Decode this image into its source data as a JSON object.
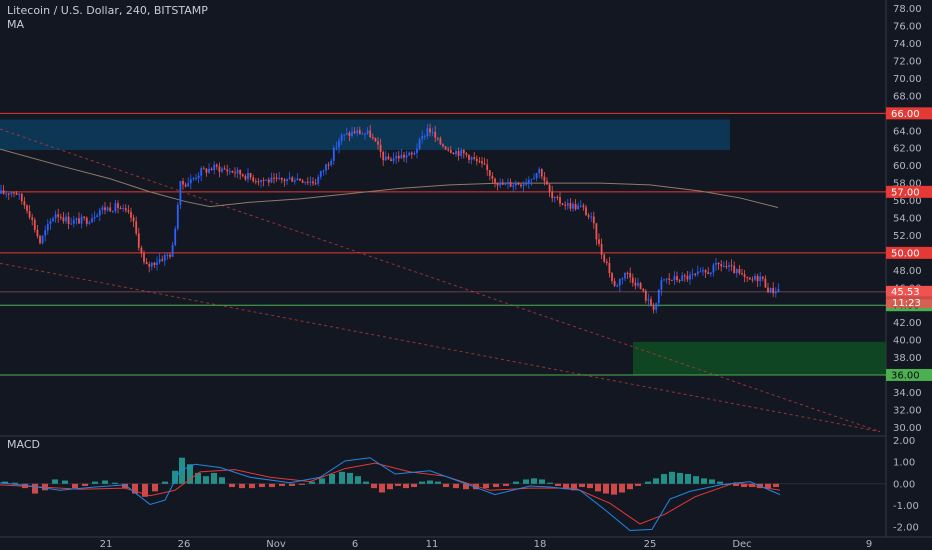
{
  "header": {
    "title": "Litecoin / U.S. Dollar, 240, BITSTAMP",
    "indicator": "MA",
    "macd_label": "MACD"
  },
  "colors": {
    "background": "#131722",
    "up_candle": "#2962ff",
    "down_candle": "#ef5350",
    "resistance": "#e53935",
    "support": "#4caf50",
    "supply_zone": "#0c3a5a",
    "demand_zone": "#0f4a23",
    "ma_line": "#8d7c6a",
    "macd_line": "#1e88e5",
    "signal_line": "#e53935",
    "hist_pos": "#26a69a",
    "hist_neg": "#ef5350"
  },
  "chart_data": [
    {
      "type": "line",
      "title": "Litecoin / U.S. Dollar, 240, BITSTAMP",
      "y_axis": {
        "range": [
          29,
          79
        ],
        "ticks": [
          "30.00",
          "32.00",
          "34.00",
          "36.00",
          "38.00",
          "40.00",
          "42.00",
          "44.00",
          "46.00",
          "48.00",
          "50.00",
          "52.00",
          "54.00",
          "56.00",
          "58.00",
          "60.00",
          "62.00",
          "64.00",
          "66.00",
          "68.00",
          "70.00",
          "72.00",
          "74.00",
          "76.00",
          "78.00"
        ]
      },
      "x_axis": {
        "ticks": [
          "21",
          "26",
          "Nov",
          "6",
          "11",
          "18",
          "25",
          "Dec",
          "9"
        ]
      },
      "price_path": [
        {
          "x": 0,
          "y": 56.8
        },
        {
          "x": 15,
          "y": 57.1
        },
        {
          "x": 28,
          "y": 55.0
        },
        {
          "x": 40,
          "y": 51.2
        },
        {
          "x": 55,
          "y": 54.6
        },
        {
          "x": 70,
          "y": 53.6
        },
        {
          "x": 88,
          "y": 53.8
        },
        {
          "x": 100,
          "y": 55.0
        },
        {
          "x": 118,
          "y": 55.3
        },
        {
          "x": 132,
          "y": 54.0
        },
        {
          "x": 145,
          "y": 48.3
        },
        {
          "x": 158,
          "y": 49.2
        },
        {
          "x": 172,
          "y": 50.0
        },
        {
          "x": 180,
          "y": 57.8
        },
        {
          "x": 190,
          "y": 58.2
        },
        {
          "x": 200,
          "y": 59.3
        },
        {
          "x": 215,
          "y": 59.8
        },
        {
          "x": 235,
          "y": 59.3
        },
        {
          "x": 255,
          "y": 58.5
        },
        {
          "x": 275,
          "y": 58.2
        },
        {
          "x": 295,
          "y": 58.6
        },
        {
          "x": 315,
          "y": 58.1
        },
        {
          "x": 330,
          "y": 60.7
        },
        {
          "x": 340,
          "y": 63.2
        },
        {
          "x": 355,
          "y": 63.9
        },
        {
          "x": 370,
          "y": 63.6
        },
        {
          "x": 385,
          "y": 60.6
        },
        {
          "x": 400,
          "y": 61.1
        },
        {
          "x": 412,
          "y": 61.2
        },
        {
          "x": 422,
          "y": 63.1
        },
        {
          "x": 428,
          "y": 64.4
        },
        {
          "x": 438,
          "y": 62.7
        },
        {
          "x": 452,
          "y": 61.8
        },
        {
          "x": 468,
          "y": 61.2
        },
        {
          "x": 485,
          "y": 59.7
        },
        {
          "x": 500,
          "y": 57.8
        },
        {
          "x": 510,
          "y": 57.9
        },
        {
          "x": 525,
          "y": 58.1
        },
        {
          "x": 540,
          "y": 59.6
        },
        {
          "x": 552,
          "y": 56.2
        },
        {
          "x": 568,
          "y": 55.5
        },
        {
          "x": 582,
          "y": 55.2
        },
        {
          "x": 592,
          "y": 53.7
        },
        {
          "x": 600,
          "y": 50.4
        },
        {
          "x": 608,
          "y": 48.5
        },
        {
          "x": 614,
          "y": 46.0
        },
        {
          "x": 625,
          "y": 47.8
        },
        {
          "x": 638,
          "y": 46.4
        },
        {
          "x": 648,
          "y": 44.4
        },
        {
          "x": 655,
          "y": 43.7
        },
        {
          "x": 662,
          "y": 46.9
        },
        {
          "x": 675,
          "y": 47.0
        },
        {
          "x": 692,
          "y": 47.3
        },
        {
          "x": 706,
          "y": 47.7
        },
        {
          "x": 720,
          "y": 48.7
        },
        {
          "x": 735,
          "y": 47.9
        },
        {
          "x": 748,
          "y": 46.7
        },
        {
          "x": 760,
          "y": 47.3
        },
        {
          "x": 770,
          "y": 45.6
        },
        {
          "x": 780,
          "y": 45.9
        }
      ],
      "moving_average": [
        {
          "x": 0,
          "y": 61.9
        },
        {
          "x": 60,
          "y": 60.0
        },
        {
          "x": 110,
          "y": 58.5
        },
        {
          "x": 150,
          "y": 57.0
        },
        {
          "x": 185,
          "y": 55.9
        },
        {
          "x": 210,
          "y": 55.3
        },
        {
          "x": 250,
          "y": 55.8
        },
        {
          "x": 300,
          "y": 56.2
        },
        {
          "x": 350,
          "y": 56.8
        },
        {
          "x": 400,
          "y": 57.4
        },
        {
          "x": 450,
          "y": 57.8
        },
        {
          "x": 500,
          "y": 58.0
        },
        {
          "x": 550,
          "y": 58.0
        },
        {
          "x": 600,
          "y": 58.0
        },
        {
          "x": 650,
          "y": 57.8
        },
        {
          "x": 700,
          "y": 57.1
        },
        {
          "x": 740,
          "y": 56.3
        },
        {
          "x": 778,
          "y": 55.2
        }
      ],
      "horizontal_levels": [
        {
          "value": 66,
          "label": "66.00",
          "kind": "resistance"
        },
        {
          "value": 57,
          "label": "57.00",
          "kind": "resistance"
        },
        {
          "value": 50,
          "label": "50.00",
          "kind": "resistance"
        },
        {
          "value": 44,
          "label": "44.00",
          "kind": "support"
        },
        {
          "value": 36,
          "label": "36.00",
          "kind": "support"
        }
      ],
      "current_price_labels": [
        "45.53",
        "11:23"
      ],
      "zones": [
        {
          "kind": "supply",
          "x_start": 0,
          "x_end": 730,
          "y_low": 61.8,
          "y_high": 65.3
        },
        {
          "kind": "demand",
          "x_start": 633,
          "x_end": 886,
          "y_low": 36.0,
          "y_high": 39.8
        }
      ],
      "trend_lines": [
        {
          "x1": 0,
          "y1": 64.2,
          "x2": 880,
          "y2": 29.5
        },
        {
          "x1": 0,
          "y1": 48.8,
          "x2": 880,
          "y2": 29.5
        }
      ]
    },
    {
      "type": "area",
      "title": "MACD",
      "y_axis": {
        "range": [
          -2.45,
          2.2
        ],
        "ticks": [
          "2.00",
          "1.00",
          "0.00",
          "-1.00",
          "-2.00"
        ]
      },
      "macd": [
        {
          "x": 0,
          "y": 0.05
        },
        {
          "x": 30,
          "y": -0.1
        },
        {
          "x": 60,
          "y": -0.3
        },
        {
          "x": 95,
          "y": -0.15
        },
        {
          "x": 125,
          "y": -0.05
        },
        {
          "x": 150,
          "y": -0.95
        },
        {
          "x": 165,
          "y": -0.75
        },
        {
          "x": 180,
          "y": 0.6
        },
        {
          "x": 195,
          "y": 0.9
        },
        {
          "x": 220,
          "y": 0.75
        },
        {
          "x": 250,
          "y": 0.3
        },
        {
          "x": 290,
          "y": 0.05
        },
        {
          "x": 320,
          "y": 0.3
        },
        {
          "x": 345,
          "y": 1.05
        },
        {
          "x": 370,
          "y": 1.2
        },
        {
          "x": 395,
          "y": 0.45
        },
        {
          "x": 430,
          "y": 0.6
        },
        {
          "x": 460,
          "y": 0.1
        },
        {
          "x": 495,
          "y": -0.5
        },
        {
          "x": 530,
          "y": -0.1
        },
        {
          "x": 550,
          "y": -0.15
        },
        {
          "x": 580,
          "y": -0.3
        },
        {
          "x": 605,
          "y": -1.2
        },
        {
          "x": 630,
          "y": -2.15
        },
        {
          "x": 652,
          "y": -2.1
        },
        {
          "x": 670,
          "y": -0.7
        },
        {
          "x": 690,
          "y": -0.35
        },
        {
          "x": 720,
          "y": -0.05
        },
        {
          "x": 750,
          "y": 0.1
        },
        {
          "x": 780,
          "y": -0.5
        }
      ],
      "signal": [
        {
          "x": 0,
          "y": -0.05
        },
        {
          "x": 40,
          "y": -0.15
        },
        {
          "x": 80,
          "y": -0.25
        },
        {
          "x": 125,
          "y": -0.2
        },
        {
          "x": 150,
          "y": -0.55
        },
        {
          "x": 175,
          "y": -0.3
        },
        {
          "x": 200,
          "y": 0.55
        },
        {
          "x": 235,
          "y": 0.65
        },
        {
          "x": 270,
          "y": 0.3
        },
        {
          "x": 310,
          "y": 0.1
        },
        {
          "x": 345,
          "y": 0.7
        },
        {
          "x": 375,
          "y": 0.95
        },
        {
          "x": 410,
          "y": 0.55
        },
        {
          "x": 445,
          "y": 0.35
        },
        {
          "x": 490,
          "y": -0.3
        },
        {
          "x": 530,
          "y": -0.2
        },
        {
          "x": 575,
          "y": -0.2
        },
        {
          "x": 610,
          "y": -0.9
        },
        {
          "x": 640,
          "y": -1.85
        },
        {
          "x": 665,
          "y": -1.4
        },
        {
          "x": 695,
          "y": -0.6
        },
        {
          "x": 735,
          "y": 0.05
        },
        {
          "x": 780,
          "y": -0.3
        }
      ],
      "histogram": [
        {
          "x": 5,
          "y": 0.1
        },
        {
          "x": 15,
          "y": 0.05
        },
        {
          "x": 25,
          "y": -0.2
        },
        {
          "x": 35,
          "y": -0.45
        },
        {
          "x": 45,
          "y": -0.3
        },
        {
          "x": 55,
          "y": 0.2
        },
        {
          "x": 65,
          "y": 0.15
        },
        {
          "x": 75,
          "y": -0.2
        },
        {
          "x": 85,
          "y": -0.1
        },
        {
          "x": 95,
          "y": 0.1
        },
        {
          "x": 105,
          "y": 0.15
        },
        {
          "x": 115,
          "y": 0.05
        },
        {
          "x": 125,
          "y": -0.2
        },
        {
          "x": 135,
          "y": -0.45
        },
        {
          "x": 145,
          "y": -0.6
        },
        {
          "x": 155,
          "y": -0.35
        },
        {
          "x": 165,
          "y": 0.1
        },
        {
          "x": 175,
          "y": 0.6
        },
        {
          "x": 182,
          "y": 1.2
        },
        {
          "x": 190,
          "y": 0.9
        },
        {
          "x": 198,
          "y": 0.5
        },
        {
          "x": 206,
          "y": 0.35
        },
        {
          "x": 214,
          "y": 0.5
        },
        {
          "x": 222,
          "y": 0.3
        },
        {
          "x": 232,
          "y": -0.15
        },
        {
          "x": 242,
          "y": -0.2
        },
        {
          "x": 252,
          "y": -0.2
        },
        {
          "x": 262,
          "y": -0.15
        },
        {
          "x": 272,
          "y": -0.15
        },
        {
          "x": 282,
          "y": -0.1
        },
        {
          "x": 292,
          "y": -0.1
        },
        {
          "x": 302,
          "y": -0.05
        },
        {
          "x": 312,
          "y": 0.1
        },
        {
          "x": 322,
          "y": 0.25
        },
        {
          "x": 332,
          "y": 0.45
        },
        {
          "x": 342,
          "y": 0.55
        },
        {
          "x": 350,
          "y": 0.5
        },
        {
          "x": 358,
          "y": 0.35
        },
        {
          "x": 366,
          "y": 0.1
        },
        {
          "x": 374,
          "y": -0.2
        },
        {
          "x": 382,
          "y": -0.4
        },
        {
          "x": 390,
          "y": -0.25
        },
        {
          "x": 398,
          "y": -0.1
        },
        {
          "x": 406,
          "y": -0.2
        },
        {
          "x": 414,
          "y": -0.15
        },
        {
          "x": 422,
          "y": 0.1
        },
        {
          "x": 430,
          "y": 0.15
        },
        {
          "x": 438,
          "y": 0.1
        },
        {
          "x": 446,
          "y": -0.15
        },
        {
          "x": 456,
          "y": -0.2
        },
        {
          "x": 466,
          "y": -0.25
        },
        {
          "x": 476,
          "y": -0.25
        },
        {
          "x": 486,
          "y": -0.2
        },
        {
          "x": 496,
          "y": -0.15
        },
        {
          "x": 506,
          "y": -0.1
        },
        {
          "x": 516,
          "y": 0.1
        },
        {
          "x": 526,
          "y": 0.2
        },
        {
          "x": 534,
          "y": 0.25
        },
        {
          "x": 542,
          "y": 0.2
        },
        {
          "x": 550,
          "y": 0.05
        },
        {
          "x": 558,
          "y": -0.1
        },
        {
          "x": 566,
          "y": -0.25
        },
        {
          "x": 574,
          "y": -0.3
        },
        {
          "x": 582,
          "y": -0.15
        },
        {
          "x": 590,
          "y": -0.2
        },
        {
          "x": 598,
          "y": -0.35
        },
        {
          "x": 606,
          "y": -0.45
        },
        {
          "x": 614,
          "y": -0.5
        },
        {
          "x": 622,
          "y": -0.4
        },
        {
          "x": 630,
          "y": -0.25
        },
        {
          "x": 638,
          "y": -0.1
        },
        {
          "x": 648,
          "y": 0.1
        },
        {
          "x": 656,
          "y": 0.25
        },
        {
          "x": 664,
          "y": 0.45
        },
        {
          "x": 672,
          "y": 0.55
        },
        {
          "x": 680,
          "y": 0.5
        },
        {
          "x": 688,
          "y": 0.45
        },
        {
          "x": 696,
          "y": 0.35
        },
        {
          "x": 704,
          "y": 0.25
        },
        {
          "x": 712,
          "y": 0.2
        },
        {
          "x": 720,
          "y": 0.1
        },
        {
          "x": 728,
          "y": -0.05
        },
        {
          "x": 736,
          "y": -0.1
        },
        {
          "x": 744,
          "y": -0.15
        },
        {
          "x": 752,
          "y": -0.15
        },
        {
          "x": 760,
          "y": -0.2
        },
        {
          "x": 768,
          "y": -0.2
        },
        {
          "x": 776,
          "y": -0.15
        }
      ]
    }
  ]
}
